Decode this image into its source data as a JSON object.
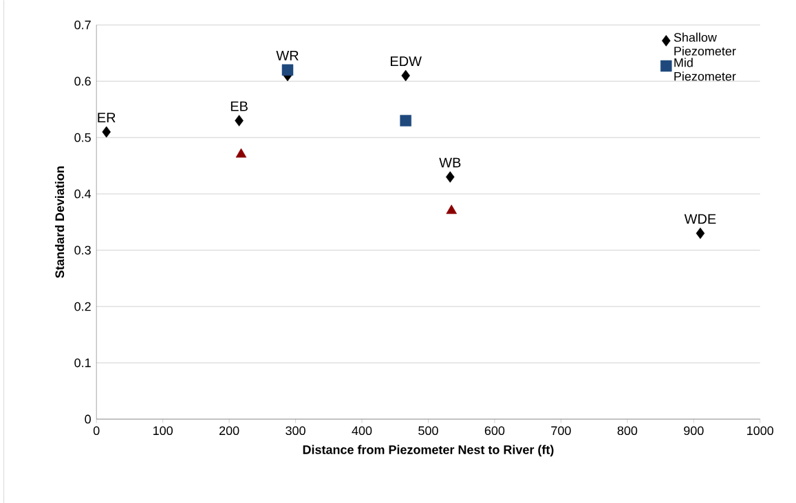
{
  "chart_data": {
    "type": "scatter",
    "xlabel": "Distance from Piezometer Nest to River (ft)",
    "ylabel": "Standard Deviation",
    "xlim": [
      0,
      1000
    ],
    "ylim": [
      0,
      0.7
    ],
    "xticks": [
      0,
      100,
      200,
      300,
      400,
      500,
      600,
      700,
      800,
      900,
      1000
    ],
    "yticks": [
      0,
      0.1,
      0.2,
      0.3,
      0.4,
      0.5,
      0.6,
      0.7
    ],
    "grid": "y",
    "legend": "top right",
    "series": [
      {
        "name": "Shallow Piezometer",
        "color": "#000000",
        "marker": "diamond",
        "x": [
          15,
          215,
          288,
          466,
          533,
          910
        ],
        "values": [
          0.51,
          0.53,
          0.61,
          0.61,
          0.43,
          0.33
        ]
      },
      {
        "name": "Mid Piezometer",
        "color": "#1f497d",
        "marker": "square",
        "x": [
          288,
          466
        ],
        "values": [
          0.62,
          0.53
        ]
      },
      {
        "color": "#8b0000",
        "marker": "triangle",
        "x": [
          218,
          535
        ],
        "values": [
          0.47,
          0.37
        ]
      }
    ],
    "annotations": [
      {
        "text": "ER",
        "x": 15,
        "y": 0.51
      },
      {
        "text": "EB",
        "x": 215,
        "y": 0.53
      },
      {
        "text": "WR",
        "x": 288,
        "y": 0.62
      },
      {
        "text": "EDW",
        "x": 466,
        "y": 0.61
      },
      {
        "text": "WB",
        "x": 533,
        "y": 0.43
      },
      {
        "text": "WDE",
        "x": 910,
        "y": 0.33
      }
    ]
  }
}
